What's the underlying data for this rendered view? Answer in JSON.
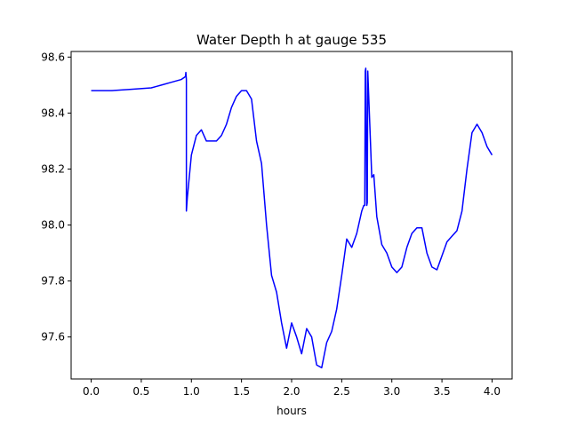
{
  "chart_data": {
    "type": "line",
    "title": "Water Depth h at gauge 535",
    "xlabel": "hours",
    "ylabel": "",
    "xlim": [
      -0.2,
      4.2
    ],
    "ylim": [
      97.45,
      98.62
    ],
    "xticks": [
      0.0,
      0.5,
      1.0,
      1.5,
      2.0,
      2.5,
      3.0,
      3.5,
      4.0
    ],
    "xtick_labels": [
      "0.0",
      "0.5",
      "1.0",
      "1.5",
      "2.0",
      "2.5",
      "3.0",
      "3.5",
      "4.0"
    ],
    "yticks": [
      97.6,
      97.8,
      98.0,
      98.2,
      98.4,
      98.6
    ],
    "ytick_labels": [
      "97.6",
      "97.8",
      "98.0",
      "98.2",
      "98.4",
      "98.6"
    ],
    "grid": false,
    "series": [
      {
        "color": "#0000ff",
        "x": [
          0.0,
          0.2,
          0.4,
          0.6,
          0.65,
          0.7,
          0.8,
          0.9,
          0.94,
          0.945,
          0.95,
          0.95,
          0.96,
          1.0,
          1.05,
          1.1,
          1.15,
          1.2,
          1.25,
          1.3,
          1.35,
          1.4,
          1.45,
          1.5,
          1.55,
          1.6,
          1.65,
          1.7,
          1.75,
          1.8,
          1.85,
          1.9,
          1.95,
          2.0,
          2.05,
          2.1,
          2.15,
          2.2,
          2.25,
          2.3,
          2.35,
          2.4,
          2.45,
          2.5,
          2.55,
          2.6,
          2.65,
          2.7,
          2.72,
          2.73,
          2.735,
          2.74,
          2.75,
          2.755,
          2.76,
          2.8,
          2.82,
          2.85,
          2.9,
          2.95,
          3.0,
          3.05,
          3.1,
          3.15,
          3.2,
          3.25,
          3.3,
          3.35,
          3.4,
          3.45,
          3.5,
          3.55,
          3.6,
          3.65,
          3.7,
          3.75,
          3.8,
          3.85,
          3.9,
          3.95,
          4.0
        ],
        "values": [
          98.48,
          98.48,
          98.485,
          98.49,
          98.495,
          98.5,
          98.51,
          98.52,
          98.53,
          98.545,
          98.52,
          98.05,
          98.1,
          98.25,
          98.32,
          98.34,
          98.3,
          98.3,
          98.3,
          98.32,
          98.36,
          98.42,
          98.46,
          98.48,
          98.48,
          98.45,
          98.3,
          98.22,
          98.0,
          97.82,
          97.76,
          97.65,
          97.56,
          97.65,
          97.6,
          97.54,
          97.63,
          97.6,
          97.5,
          97.49,
          97.58,
          97.62,
          97.7,
          97.82,
          97.95,
          97.92,
          97.97,
          98.05,
          98.07,
          98.07,
          98.55,
          98.56,
          98.07,
          98.08,
          98.55,
          98.17,
          98.18,
          98.03,
          97.93,
          97.9,
          97.85,
          97.83,
          97.85,
          97.92,
          97.97,
          97.99,
          97.99,
          97.9,
          97.85,
          97.84,
          97.89,
          97.94,
          97.96,
          97.98,
          98.05,
          98.2,
          98.33,
          98.36,
          98.33,
          98.28,
          98.25
        ]
      }
    ]
  }
}
